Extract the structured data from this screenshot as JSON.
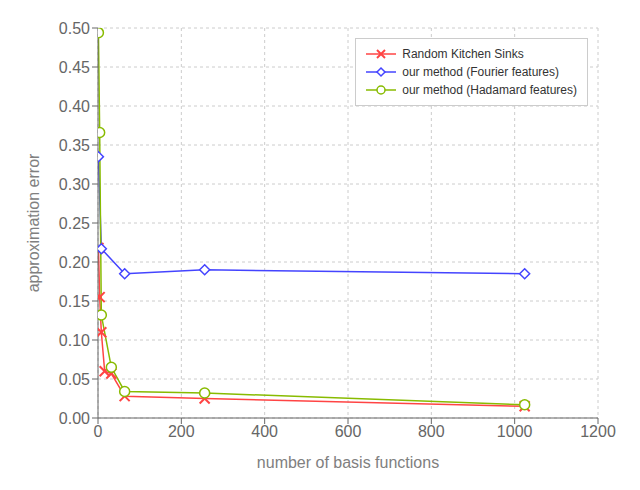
{
  "chart_data": {
    "type": "line",
    "xlabel": "number of basis functions",
    "ylabel": "approximation error",
    "series": [
      {
        "name": "Random Kitchen Sinks",
        "color": "#ff4444",
        "marker": "x",
        "x": [
          1,
          4,
          8,
          16,
          32,
          64,
          256,
          1024
        ],
        "values": [
          0.218,
          0.155,
          0.11,
          0.06,
          0.057,
          0.028,
          0.025,
          0.015
        ]
      },
      {
        "name": "our method (Fourier features)",
        "color": "#4444ff",
        "marker": "diamond",
        "x": [
          1,
          8,
          64,
          256,
          1024
        ],
        "values": [
          0.335,
          0.217,
          0.185,
          0.19,
          0.185
        ]
      },
      {
        "name": "our method (Hadamard features)",
        "color": "#88bb00",
        "marker": "circle",
        "x": [
          1,
          4,
          8,
          32,
          64,
          256,
          1024
        ],
        "values": [
          0.494,
          0.366,
          0.132,
          0.065,
          0.034,
          0.032,
          0.017
        ]
      }
    ],
    "xlim": [
      0,
      1200
    ],
    "ylim": [
      0,
      0.5
    ],
    "xticks": [
      0,
      200,
      400,
      600,
      800,
      1000,
      1200
    ],
    "yticks": [
      {
        "value": 0,
        "label": "0.00"
      },
      0.05,
      {
        "value": 0.1,
        "label": "0.10"
      },
      0.15,
      {
        "value": 0.2,
        "label": "0.20"
      },
      0.25,
      {
        "value": 0.3,
        "label": "0.30"
      },
      0.35,
      {
        "value": 0.4,
        "label": "0.40"
      },
      0.45,
      {
        "value": 0.5,
        "label": "0.50"
      }
    ],
    "grid": true,
    "legend": "upper right"
  }
}
